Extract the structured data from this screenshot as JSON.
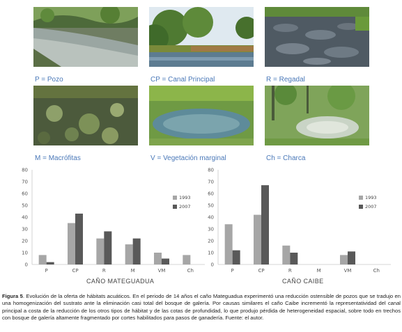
{
  "photos": [
    {
      "label": "P = Pozo"
    },
    {
      "label": "CP = Canal Principal"
    },
    {
      "label": "R = Regadal"
    },
    {
      "label": "M = Macrófitas"
    },
    {
      "label": "V = Vegetación marginal"
    },
    {
      "label": "Ch = Charca"
    }
  ],
  "chart_data": [
    {
      "type": "bar",
      "categories": [
        "P",
        "CP",
        "R",
        "M",
        "VM",
        "Ch"
      ],
      "series": [
        {
          "name": "1993",
          "color": "#a6a6a6",
          "values": [
            8,
            35,
            22,
            17,
            10,
            8
          ]
        },
        {
          "name": "2007",
          "color": "#595959",
          "values": [
            2,
            43,
            28,
            22,
            5,
            0
          ]
        }
      ],
      "ylim": [
        0,
        80
      ],
      "yticks": [
        "0",
        "10",
        "20",
        "30",
        "40",
        "50",
        "60",
        "70",
        "80"
      ],
      "xlabel": "CAÑO MATEGUADUA",
      "legend": "right"
    },
    {
      "type": "bar",
      "categories": [
        "P",
        "CP",
        "R",
        "M",
        "VM",
        "Ch"
      ],
      "series": [
        {
          "name": "1993",
          "color": "#a6a6a6",
          "values": [
            34,
            42,
            16,
            0,
            8,
            0
          ]
        },
        {
          "name": "2007",
          "color": "#595959",
          "values": [
            12,
            67,
            10,
            0,
            11,
            0
          ]
        }
      ],
      "ylim": [
        0,
        80
      ],
      "yticks": [
        "0",
        "10",
        "20",
        "30",
        "40",
        "50",
        "60",
        "70",
        "80"
      ],
      "xlabel": "CAÑO CAIBE",
      "legend": "right"
    }
  ],
  "caption": {
    "label": "Figura 5",
    "text": ". Evolución de la oferta de hábitats acuáticos. En el periodo de 14 años el caño Mateguadua experimentó una reducción ostensible de pozos que se tradujo en una homogenización del sustrato ante la eliminación casi total del bosque de galería. Por causas similares el caño Caibe incrementó la representatividad del canal principal a costa de la reducción de los otros tipos de hábitat y de las cotas de profundidad, lo que produjo pérdida de heterogeneidad espacial, sobre todo en trechos con bosque de galería altamente fragmentado por cortes habilitados para pasos de ganadería. Fuente: el autor."
  }
}
